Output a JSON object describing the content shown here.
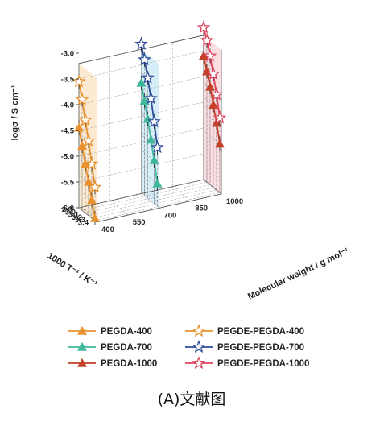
{
  "chart_data": {
    "type": "line",
    "projection": "3d",
    "caption": "(A)文献图",
    "axes": {
      "y": {
        "label": "logσ / S cm⁻¹",
        "ticks": [
          "-3.0",
          "-3.5",
          "-4.0",
          "-4.5",
          "-5.0",
          "-5.5",
          "-6.0"
        ],
        "range": [
          -6.0,
          -3.0
        ]
      },
      "x": {
        "label": "1000 T⁻¹ / K⁻¹",
        "ticks": [
          "2.9",
          "3.0",
          "3.1",
          "3.2",
          "3.3",
          "3.4"
        ],
        "range": [
          2.9,
          3.45
        ]
      },
      "z": {
        "label": "Molecular weight / g mol⁻¹",
        "ticks": [
          "400",
          "550",
          "700",
          "850",
          "1000"
        ],
        "range": [
          400,
          1000
        ]
      }
    },
    "grid": true,
    "legend_position": "bottom",
    "series": [
      {
        "name": "PEGDA-400",
        "marker": "triangle-filled",
        "color": "#e8912e",
        "z": 400,
        "points": [
          [
            2.9,
            -4.45
          ],
          [
            3.0,
            -4.75
          ],
          [
            3.1,
            -5.05
          ],
          [
            3.2,
            -5.35
          ],
          [
            3.3,
            -5.65
          ],
          [
            3.4,
            -5.95
          ]
        ]
      },
      {
        "name": "PEGDE-PEGDA-400",
        "marker": "star-open",
        "color": "#e8912e",
        "z": 400,
        "points": [
          [
            2.9,
            -3.55
          ],
          [
            3.0,
            -3.85
          ],
          [
            3.1,
            -4.2
          ],
          [
            3.2,
            -4.55
          ],
          [
            3.3,
            -4.95
          ],
          [
            3.4,
            -5.35
          ]
        ]
      },
      {
        "name": "PEGDA-700",
        "marker": "triangle-filled",
        "color": "#3fb79a",
        "z": 700,
        "points": [
          [
            2.9,
            -3.85
          ],
          [
            3.0,
            -4.15
          ],
          [
            3.1,
            -4.45
          ],
          [
            3.2,
            -4.8
          ],
          [
            3.3,
            -5.15
          ],
          [
            3.4,
            -5.55
          ]
        ]
      },
      {
        "name": "PEGDE-PEGDA-700",
        "marker": "star-open",
        "color": "#2f4e9c",
        "z": 700,
        "points": [
          [
            2.9,
            -3.1
          ],
          [
            3.0,
            -3.35
          ],
          [
            3.1,
            -3.65
          ],
          [
            3.2,
            -4.0
          ],
          [
            3.3,
            -4.4
          ],
          [
            3.4,
            -4.85
          ]
        ]
      },
      {
        "name": "PEGDA-1000",
        "marker": "triangle-filled",
        "color": "#c4412a",
        "z": 1000,
        "points": [
          [
            2.9,
            -3.6
          ],
          [
            3.0,
            -3.85
          ],
          [
            3.1,
            -4.1
          ],
          [
            3.2,
            -4.4
          ],
          [
            3.3,
            -4.7
          ],
          [
            3.4,
            -5.05
          ]
        ]
      },
      {
        "name": "PEGDE-PEGDA-1000",
        "marker": "star-open",
        "color": "#e0425c",
        "z": 1000,
        "points": [
          [
            2.9,
            -3.05
          ],
          [
            3.0,
            -3.25
          ],
          [
            3.1,
            -3.5
          ],
          [
            3.2,
            -3.8
          ],
          [
            3.3,
            -4.15
          ],
          [
            3.4,
            -4.55
          ]
        ]
      }
    ]
  }
}
